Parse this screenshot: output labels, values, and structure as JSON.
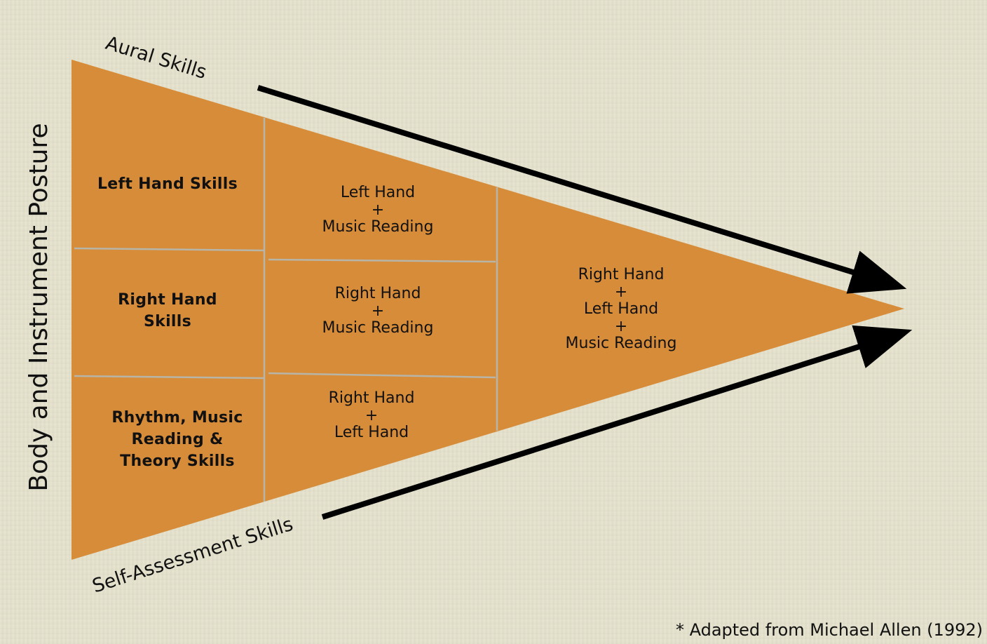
{
  "colors": {
    "funnel_fill": "#d78c3a",
    "divider": "#b7b4a8",
    "arrow": "#000000",
    "background": "#e4e1cc"
  },
  "side_label": "Body and Instrument Posture",
  "arrows": {
    "top_label": "Aural Skills",
    "bottom_label": "Self-Assessment Skills"
  },
  "column1": [
    {
      "lines": [
        "Left Hand Skills"
      ]
    },
    {
      "lines": [
        "Right Hand",
        "Skills"
      ]
    },
    {
      "lines": [
        "Rhythm, Music",
        "Reading &",
        "Theory Skills"
      ]
    }
  ],
  "column2": [
    {
      "lines": [
        "Left Hand",
        "+",
        "Music Reading"
      ]
    },
    {
      "lines": [
        "Right Hand",
        "+",
        "Music Reading"
      ]
    },
    {
      "lines": [
        "Right Hand",
        "+",
        "Left Hand"
      ]
    }
  ],
  "column3": [
    {
      "lines": [
        "Right Hand",
        "+",
        "Left Hand",
        "+",
        "Music Reading"
      ]
    }
  ],
  "footnote": "* Adapted from Michael Allen (1992)"
}
